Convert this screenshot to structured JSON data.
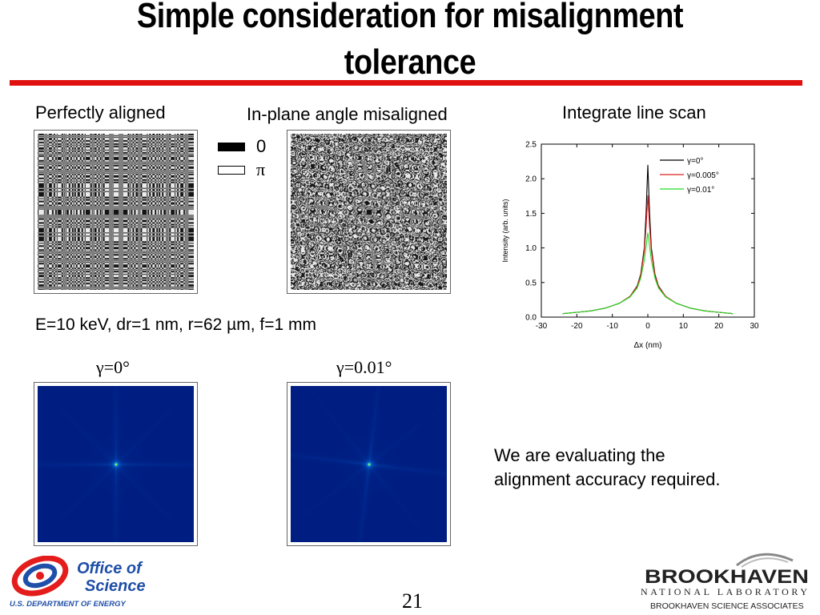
{
  "slide": {
    "title_line1": "Simple consideration for misalignment",
    "title_line2": "tolerance",
    "page_number": "21"
  },
  "captions": {
    "perfectly_aligned": "Perfectly aligned",
    "in_plane": "In-plane angle misaligned",
    "integrate": "Integrate line scan",
    "params": "E=10 keV, dr=1 nm, r=62 µm, f=1 mm",
    "gamma0": "γ=0°",
    "gamma001": "γ=0.01°",
    "evaluating_line1": "We are evaluating the",
    "evaluating_line2": "alignment accuracy required."
  },
  "phase_legend": {
    "black_label": "0",
    "white_label": "π"
  },
  "logos": {
    "doe_line1": "Office of",
    "doe_line2": "Science",
    "doe_line3": "U.S. DEPARTMENT OF ENERGY",
    "bnl_line1": "BROOKHAVEN",
    "bnl_line2": "NATIONAL LABORATORY",
    "bnl_line3": "BROOKHAVEN SCIENCE ASSOCIATES"
  },
  "chart_data": {
    "type": "line",
    "xlabel": "Δx (nm)",
    "ylabel": "Intensity (arb. units)",
    "xlim": [
      -30,
      30
    ],
    "ylim": [
      0.0,
      2.5
    ],
    "xticks": [
      -30,
      -20,
      -10,
      0,
      10,
      20,
      30
    ],
    "yticks": [
      0.0,
      0.5,
      1.0,
      1.5,
      2.0,
      2.5
    ],
    "ytick_labels": [
      "0.0",
      "0.5",
      "1.0",
      "1.5",
      "2.0",
      "2.5"
    ],
    "grid": false,
    "legend_position": "top-right",
    "series": [
      {
        "name": "γ=0°",
        "color": "#000000",
        "peak": 2.2,
        "x": [
          -24,
          -20,
          -16,
          -12,
          -8,
          -5,
          -3,
          -2,
          -1,
          -0.5,
          0,
          0.5,
          1,
          2,
          3,
          5,
          8,
          12,
          16,
          20,
          24
        ],
        "y": [
          0.05,
          0.07,
          0.09,
          0.13,
          0.2,
          0.3,
          0.45,
          0.62,
          1.0,
          1.5,
          2.2,
          1.5,
          1.0,
          0.62,
          0.45,
          0.3,
          0.2,
          0.13,
          0.09,
          0.07,
          0.05
        ]
      },
      {
        "name": "γ=0.005°",
        "color": "#e02020",
        "peak": 1.76,
        "x": [
          -24,
          -20,
          -16,
          -12,
          -8,
          -5,
          -3,
          -2,
          -1,
          -0.5,
          0,
          0.5,
          1,
          2,
          3,
          5,
          8,
          12,
          16,
          20,
          24
        ],
        "y": [
          0.05,
          0.07,
          0.09,
          0.13,
          0.2,
          0.3,
          0.44,
          0.6,
          0.95,
          1.3,
          1.76,
          1.3,
          0.95,
          0.6,
          0.44,
          0.3,
          0.2,
          0.13,
          0.09,
          0.07,
          0.05
        ]
      },
      {
        "name": "γ=0.01°",
        "color": "#22dd22",
        "peak": 1.22,
        "x": [
          -24,
          -20,
          -16,
          -12,
          -8,
          -5,
          -3,
          -2,
          -1,
          -0.5,
          0,
          0.5,
          1,
          2,
          3,
          5,
          8,
          12,
          16,
          20,
          24
        ],
        "y": [
          0.05,
          0.07,
          0.09,
          0.13,
          0.2,
          0.29,
          0.42,
          0.56,
          0.82,
          1.02,
          1.22,
          1.02,
          0.82,
          0.56,
          0.42,
          0.29,
          0.2,
          0.13,
          0.09,
          0.07,
          0.05
        ]
      }
    ]
  }
}
